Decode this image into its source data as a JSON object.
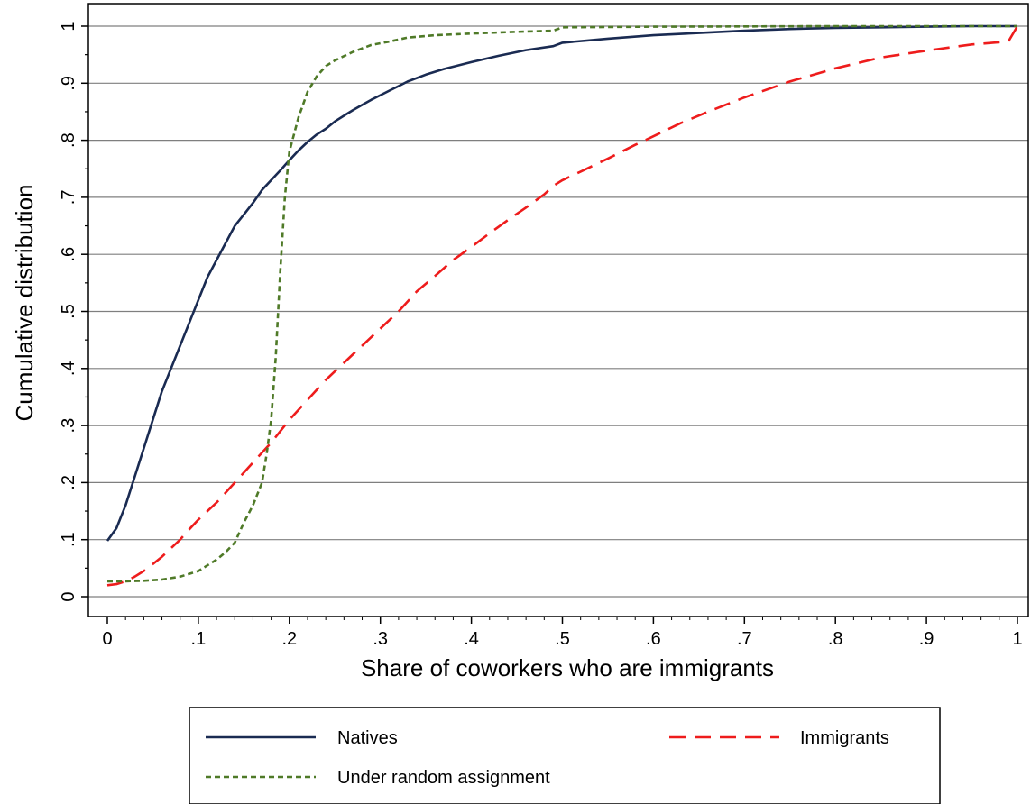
{
  "chart_data": {
    "type": "line",
    "title": "",
    "xlabel": "Share of coworkers who are immigrants",
    "ylabel": "Cumulative distribution",
    "xlim": [
      0,
      1
    ],
    "ylim": [
      0,
      1
    ],
    "x_ticks": [
      {
        "value": 0,
        "label": "0"
      },
      {
        "value": 0.1,
        "label": ".1"
      },
      {
        "value": 0.2,
        "label": ".2"
      },
      {
        "value": 0.3,
        "label": ".3"
      },
      {
        "value": 0.4,
        "label": ".4"
      },
      {
        "value": 0.5,
        "label": ".5"
      },
      {
        "value": 0.6,
        "label": ".6"
      },
      {
        "value": 0.7,
        "label": ".7"
      },
      {
        "value": 0.8,
        "label": ".8"
      },
      {
        "value": 0.9,
        "label": ".9"
      },
      {
        "value": 1,
        "label": "1"
      }
    ],
    "y_ticks": [
      {
        "value": 0,
        "label": "0"
      },
      {
        "value": 0.1,
        "label": ".1"
      },
      {
        "value": 0.2,
        "label": ".2"
      },
      {
        "value": 0.3,
        "label": ".3"
      },
      {
        "value": 0.4,
        "label": ".4"
      },
      {
        "value": 0.5,
        "label": ".5"
      },
      {
        "value": 0.6,
        "label": ".6"
      },
      {
        "value": 0.7,
        "label": ".7"
      },
      {
        "value": 0.8,
        "label": ".8"
      },
      {
        "value": 0.9,
        "label": ".9"
      },
      {
        "value": 1,
        "label": "1"
      }
    ],
    "grid": "horizontal",
    "legend_position": "bottom",
    "series": [
      {
        "name": "Natives",
        "color": "#1a2b52",
        "dash": "solid",
        "points": [
          [
            0,
            0.098
          ],
          [
            0.01,
            0.12
          ],
          [
            0.02,
            0.16
          ],
          [
            0.03,
            0.21
          ],
          [
            0.04,
            0.26
          ],
          [
            0.05,
            0.31
          ],
          [
            0.06,
            0.36
          ],
          [
            0.07,
            0.4
          ],
          [
            0.08,
            0.44
          ],
          [
            0.09,
            0.48
          ],
          [
            0.1,
            0.52
          ],
          [
            0.11,
            0.56
          ],
          [
            0.12,
            0.59
          ],
          [
            0.13,
            0.62
          ],
          [
            0.14,
            0.65
          ],
          [
            0.15,
            0.67
          ],
          [
            0.16,
            0.69
          ],
          [
            0.17,
            0.713
          ],
          [
            0.18,
            0.73
          ],
          [
            0.19,
            0.747
          ],
          [
            0.2,
            0.765
          ],
          [
            0.21,
            0.782
          ],
          [
            0.22,
            0.797
          ],
          [
            0.23,
            0.81
          ],
          [
            0.24,
            0.82
          ],
          [
            0.25,
            0.833
          ],
          [
            0.26,
            0.843
          ],
          [
            0.27,
            0.853
          ],
          [
            0.28,
            0.862
          ],
          [
            0.29,
            0.871
          ],
          [
            0.3,
            0.879
          ],
          [
            0.31,
            0.887
          ],
          [
            0.32,
            0.895
          ],
          [
            0.33,
            0.903
          ],
          [
            0.35,
            0.915
          ],
          [
            0.37,
            0.925
          ],
          [
            0.4,
            0.937
          ],
          [
            0.43,
            0.948
          ],
          [
            0.46,
            0.958
          ],
          [
            0.49,
            0.965
          ],
          [
            0.5,
            0.971
          ],
          [
            0.55,
            0.978
          ],
          [
            0.6,
            0.984
          ],
          [
            0.65,
            0.988
          ],
          [
            0.7,
            0.992
          ],
          [
            0.75,
            0.995
          ],
          [
            0.8,
            0.997
          ],
          [
            0.85,
            0.998
          ],
          [
            0.9,
            0.999
          ],
          [
            0.95,
            1.0
          ],
          [
            1.0,
            1.0
          ]
        ]
      },
      {
        "name": "Immigrants",
        "color": "#ee1c1c",
        "dash": "long",
        "points": [
          [
            0,
            0.02
          ],
          [
            0.01,
            0.022
          ],
          [
            0.02,
            0.027
          ],
          [
            0.03,
            0.035
          ],
          [
            0.04,
            0.045
          ],
          [
            0.05,
            0.057
          ],
          [
            0.06,
            0.07
          ],
          [
            0.07,
            0.085
          ],
          [
            0.08,
            0.1
          ],
          [
            0.09,
            0.118
          ],
          [
            0.1,
            0.135
          ],
          [
            0.12,
            0.165
          ],
          [
            0.14,
            0.2
          ],
          [
            0.16,
            0.235
          ],
          [
            0.18,
            0.27
          ],
          [
            0.2,
            0.31
          ],
          [
            0.22,
            0.345
          ],
          [
            0.24,
            0.38
          ],
          [
            0.26,
            0.41
          ],
          [
            0.28,
            0.44
          ],
          [
            0.3,
            0.47
          ],
          [
            0.32,
            0.5
          ],
          [
            0.34,
            0.535
          ],
          [
            0.36,
            0.562
          ],
          [
            0.38,
            0.59
          ],
          [
            0.4,
            0.613
          ],
          [
            0.42,
            0.637
          ],
          [
            0.44,
            0.66
          ],
          [
            0.46,
            0.682
          ],
          [
            0.48,
            0.705
          ],
          [
            0.49,
            0.72
          ],
          [
            0.5,
            0.73
          ],
          [
            0.52,
            0.745
          ],
          [
            0.55,
            0.768
          ],
          [
            0.58,
            0.792
          ],
          [
            0.6,
            0.807
          ],
          [
            0.63,
            0.83
          ],
          [
            0.66,
            0.85
          ],
          [
            0.7,
            0.875
          ],
          [
            0.75,
            0.903
          ],
          [
            0.8,
            0.926
          ],
          [
            0.85,
            0.945
          ],
          [
            0.9,
            0.957
          ],
          [
            0.95,
            0.968
          ],
          [
            0.99,
            0.973
          ],
          [
            1.0,
            1.0
          ]
        ]
      },
      {
        "name": "Under random assignment",
        "color": "#4f7a28",
        "dash": "short",
        "points": [
          [
            0,
            0.027
          ],
          [
            0.02,
            0.027
          ],
          [
            0.04,
            0.028
          ],
          [
            0.06,
            0.03
          ],
          [
            0.08,
            0.035
          ],
          [
            0.1,
            0.045
          ],
          [
            0.11,
            0.055
          ],
          [
            0.12,
            0.065
          ],
          [
            0.13,
            0.078
          ],
          [
            0.14,
            0.095
          ],
          [
            0.15,
            0.13
          ],
          [
            0.16,
            0.16
          ],
          [
            0.17,
            0.2
          ],
          [
            0.175,
            0.25
          ],
          [
            0.18,
            0.31
          ],
          [
            0.185,
            0.42
          ],
          [
            0.19,
            0.57
          ],
          [
            0.195,
            0.7
          ],
          [
            0.2,
            0.78
          ],
          [
            0.21,
            0.84
          ],
          [
            0.22,
            0.885
          ],
          [
            0.23,
            0.912
          ],
          [
            0.24,
            0.93
          ],
          [
            0.25,
            0.94
          ],
          [
            0.27,
            0.955
          ],
          [
            0.29,
            0.967
          ],
          [
            0.31,
            0.973
          ],
          [
            0.33,
            0.98
          ],
          [
            0.36,
            0.984
          ],
          [
            0.4,
            0.987
          ],
          [
            0.45,
            0.99
          ],
          [
            0.49,
            0.992
          ],
          [
            0.5,
            0.998
          ],
          [
            0.6,
            0.999
          ],
          [
            0.8,
            1.0
          ],
          [
            1.0,
            1.0
          ]
        ]
      }
    ]
  }
}
